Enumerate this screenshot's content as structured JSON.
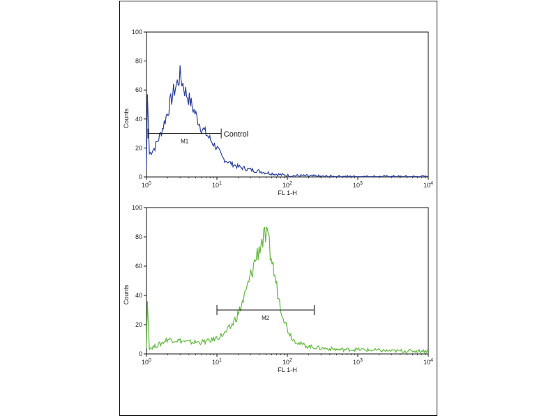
{
  "chart_data": [
    {
      "type": "line",
      "title": "",
      "xlabel": "FL 1-H",
      "ylabel": "Counts",
      "x_scale": "log",
      "xlim": [
        1,
        10000
      ],
      "ylim": [
        0,
        100
      ],
      "x_ticks": [
        1,
        10,
        100,
        1000,
        10000
      ],
      "x_tick_labels": [
        {
          "base": "10",
          "exp": "0"
        },
        {
          "base": "10",
          "exp": "1"
        },
        {
          "base": "10",
          "exp": "2"
        },
        {
          "base": "10",
          "exp": "3"
        },
        {
          "base": "10",
          "exp": "4"
        }
      ],
      "y_ticks": [
        "0",
        "20",
        "40",
        "60",
        "80",
        "100"
      ],
      "color": "#2a3f9a",
      "series": [
        {
          "x": [
            1.0,
            1.03,
            1.1,
            1.3,
            1.6,
            2.0,
            2.4,
            2.8,
            3.0,
            3.2,
            3.5,
            4.0,
            5.0,
            6.0,
            7.0,
            8.0,
            10.0,
            12.0,
            15.0,
            20.0,
            30.0,
            50.0,
            80.0,
            100.0,
            150.0,
            200.0,
            300.0,
            1000.0,
            10000.0
          ],
          "y": [
            5,
            57,
            16,
            20,
            30,
            45,
            58,
            66,
            70,
            66,
            60,
            54,
            43,
            34,
            30,
            26,
            20,
            13,
            10,
            7,
            5,
            3,
            1.5,
            1,
            0.8,
            0.6,
            0.3,
            0.1,
            0.1
          ]
        }
      ],
      "gates": [
        {
          "label": "M1",
          "x_start": 1.05,
          "x_end": 11.5,
          "y": 30
        }
      ],
      "annotations": [
        {
          "text": "Control",
          "x": 12.5,
          "y": 28
        }
      ]
    },
    {
      "type": "line",
      "title": "",
      "xlabel": "FL 1-H",
      "ylabel": "Counts",
      "x_scale": "log",
      "xlim": [
        1,
        10000
      ],
      "ylim": [
        0,
        100
      ],
      "x_ticks": [
        1,
        10,
        100,
        1000,
        10000
      ],
      "x_tick_labels": [
        {
          "base": "10",
          "exp": "0"
        },
        {
          "base": "10",
          "exp": "1"
        },
        {
          "base": "10",
          "exp": "2"
        },
        {
          "base": "10",
          "exp": "3"
        },
        {
          "base": "10",
          "exp": "4"
        }
      ],
      "y_ticks": [
        "0",
        "20",
        "40",
        "60",
        "80",
        "100"
      ],
      "color": "#62b83c",
      "series": [
        {
          "x": [
            1.0,
            1.03,
            1.1,
            1.3,
            1.6,
            2.0,
            3.0,
            4.0,
            6.0,
            8.0,
            10.0,
            13.0,
            16.0,
            20.0,
            25.0,
            30.0,
            35.0,
            40.0,
            45.0,
            50.0,
            55.0,
            60.0,
            70.0,
            80.0,
            100.0,
            120.0,
            150.0,
            200.0,
            300.0,
            500.0,
            1000.0,
            3000.0,
            10000.0
          ],
          "y": [
            4,
            36,
            4,
            5,
            7,
            10,
            9,
            8,
            8,
            9,
            11,
            14,
            19,
            27,
            40,
            53,
            64,
            73,
            78,
            80,
            74,
            64,
            47,
            32,
            17,
            10,
            7,
            5,
            4,
            3,
            3,
            2,
            2
          ]
        }
      ],
      "gates": [
        {
          "label": "M2",
          "x_start": 10.0,
          "x_end": 240.0,
          "y": 30
        }
      ],
      "annotations": []
    }
  ]
}
